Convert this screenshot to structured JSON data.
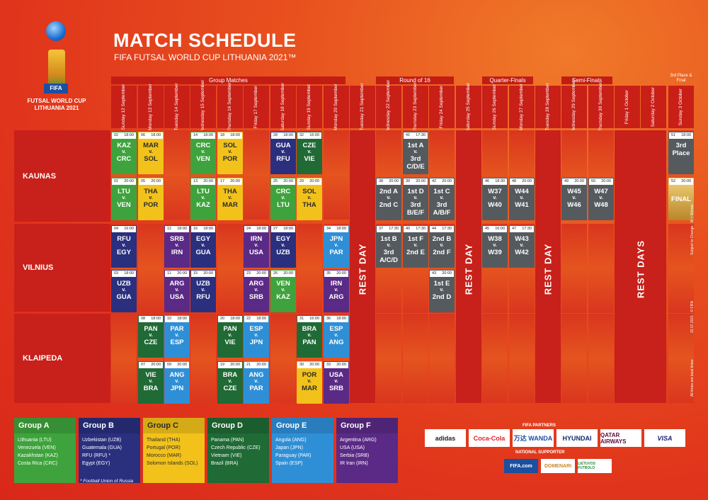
{
  "header": {
    "title": "MATCH SCHEDULE",
    "subtitle": "FIFA FUTSAL WORLD CUP LITHUANIA 2021™",
    "logo_fifa": "FIFA",
    "logo_line1": "FUTSAL WORLD CUP",
    "logo_line2": "LITHUANIA 2021"
  },
  "stages": {
    "group": "Group Matches",
    "r16": "Round of 16",
    "qf": "Quarter-Finals",
    "sf": "Semi-Finals",
    "final": "3rd Place & Final"
  },
  "dates": [
    "Sunday 12 September",
    "Monday 13 September",
    "Tuesday 14 September",
    "Wednesday 15 September",
    "Thursday 16 September",
    "Friday 17 September",
    "Saturday 18 September",
    "Sunday 19 September",
    "Monday 20 September",
    "Tuesday 21 September",
    "Wednesday 22 September",
    "Thursday 23 September",
    "Friday 24 September",
    "Saturday 25 September",
    "Sunday 26 September",
    "Monday 27 September",
    "Tuesday 28 September",
    "Wednesday 29 September",
    "Thursday 30 September",
    "Friday 1 October",
    "Saturday 2 October",
    "Sunday 3 October"
  ],
  "venues": {
    "kaunas": "KAUNAS",
    "vilnius": "VILNIUS",
    "klaipeda": "KLAIPEDA"
  },
  "rest": {
    "day": "REST DAY",
    "days": "REST DAYS"
  },
  "matches": [
    {
      "no": "02",
      "time": "18:00",
      "l1": "KAZ",
      "l2": "v.",
      "l3": "CRC"
    },
    {
      "no": "06",
      "time": "18:00",
      "l1": "MAR",
      "l2": "v.",
      "l3": "SOL"
    },
    {
      "no": "14",
      "time": "18:00",
      "l1": "CRC",
      "l2": "v.",
      "l3": "VEN"
    },
    {
      "no": "18",
      "time": "18:00",
      "l1": "SOL",
      "l2": "v.",
      "l3": "POR"
    },
    {
      "no": "28",
      "time": "18:00",
      "l1": "GUA",
      "l2": "v.",
      "l3": "RFU"
    },
    {
      "no": "32",
      "time": "16:00",
      "l1": "CZE",
      "l2": "v.",
      "l3": "VIE"
    },
    {
      "no": "41",
      "time": "17:30",
      "l1": "1st A",
      "l2": "v.",
      "l3": "3rd C/D/E"
    },
    {
      "no": "51",
      "time": "18:00",
      "l1": "3rd",
      "l2": "",
      "l3": "Place"
    },
    {
      "no": "01",
      "time": "20:00",
      "l1": "LTU",
      "l2": "v.",
      "l3": "VEN"
    },
    {
      "no": "05",
      "time": "20:00",
      "l1": "THA",
      "l2": "v.",
      "l3": "POR"
    },
    {
      "no": "13",
      "time": "20:00",
      "l1": "LTU",
      "l2": "v.",
      "l3": "KAZ"
    },
    {
      "no": "17",
      "time": "20:00",
      "l1": "THA",
      "l2": "v.",
      "l3": "MAR"
    },
    {
      "no": "25",
      "time": "20:00",
      "l1": "CRC",
      "l2": "v.",
      "l3": "LTU"
    },
    {
      "no": "29",
      "time": "20:00",
      "l1": "SOL",
      "l2": "v.",
      "l3": "THA"
    },
    {
      "no": "38",
      "time": "20:00",
      "l1": "2nd A",
      "l2": "v.",
      "l3": "2nd C"
    },
    {
      "no": "39",
      "time": "20:00",
      "l1": "1st D",
      "l2": "v.",
      "l3": "3rd B/E/F"
    },
    {
      "no": "42",
      "time": "20:00",
      "l1": "1st C",
      "l2": "v.",
      "l3": "3rd A/B/F"
    },
    {
      "no": "46",
      "time": "18:30",
      "l1": "W37",
      "l2": "v.",
      "l3": "W40"
    },
    {
      "no": "48",
      "time": "20:00",
      "l1": "W44",
      "l2": "v.",
      "l3": "W41"
    },
    {
      "no": "49",
      "time": "20:00",
      "l1": "W45",
      "l2": "v.",
      "l3": "W46"
    },
    {
      "no": "50",
      "time": "20:00",
      "l1": "W47",
      "l2": "v.",
      "l3": "W48"
    },
    {
      "no": "52",
      "time": "20:00",
      "l1": "FINAL",
      "l2": "",
      "l3": ""
    },
    {
      "no": "04",
      "time": "16:00",
      "l1": "RFU",
      "l2": "v.",
      "l3": "EGY"
    },
    {
      "no": "12",
      "time": "18:00",
      "l1": "SRB",
      "l2": "v.",
      "l3": "IRN"
    },
    {
      "no": "16",
      "time": "18:00",
      "l1": "EGY",
      "l2": "v.",
      "l3": "GUA"
    },
    {
      "no": "24",
      "time": "18:00",
      "l1": "IRN",
      "l2": "v.",
      "l3": "USA"
    },
    {
      "no": "27",
      "time": "18:00",
      "l1": "EGY",
      "l2": "v.",
      "l3": "UZB"
    },
    {
      "no": "34",
      "time": "18:00",
      "l1": "JPN",
      "l2": "v.",
      "l3": "PAR"
    },
    {
      "no": "37",
      "time": "17:30",
      "l1": "1st B",
      "l2": "v.",
      "l3": "3rd A/C/D"
    },
    {
      "no": "40",
      "time": "17:30",
      "l1": "1st F",
      "l2": "v.",
      "l3": "2nd E"
    },
    {
      "no": "44",
      "time": "17:30",
      "l1": "2nd B",
      "l2": "v.",
      "l3": "2nd F"
    },
    {
      "no": "45",
      "time": "16:00",
      "l1": "W38",
      "l2": "v.",
      "l3": "W39"
    },
    {
      "no": "47",
      "time": "17:30",
      "l1": "W43",
      "l2": "v.",
      "l3": "W42"
    },
    {
      "no": "03",
      "time": "18:00",
      "l1": "UZB",
      "l2": "v.",
      "l3": "GUA"
    },
    {
      "no": "11",
      "time": "20:00",
      "l1": "ARG",
      "l2": "v.",
      "l3": "USA"
    },
    {
      "no": "15",
      "time": "20:00",
      "l1": "UZB",
      "l2": "v.",
      "l3": "RFU"
    },
    {
      "no": "23",
      "time": "20:00",
      "l1": "ARG",
      "l2": "v.",
      "l3": "SRB"
    },
    {
      "no": "26",
      "time": "20:00",
      "l1": "VEN",
      "l2": "v.",
      "l3": "KAZ"
    },
    {
      "no": "35",
      "time": "20:00",
      "l1": "IRN",
      "l2": "v.",
      "l3": "ARG"
    },
    {
      "no": "43",
      "time": "20:00",
      "l1": "1st E",
      "l2": "v.",
      "l3": "2nd D"
    },
    {
      "no": "08",
      "time": "18:00",
      "l1": "PAN",
      "l2": "v.",
      "l3": "CZE"
    },
    {
      "no": "10",
      "time": "18:00",
      "l1": "PAR",
      "l2": "v.",
      "l3": "ESP"
    },
    {
      "no": "20",
      "time": "18:00",
      "l1": "PAN",
      "l2": "v.",
      "l3": "VIE"
    },
    {
      "no": "22",
      "time": "18:00",
      "l1": "ESP",
      "l2": "v.",
      "l3": "JPN"
    },
    {
      "no": "31",
      "time": "16:00",
      "l1": "BRA",
      "l2": "v.",
      "l3": "PAN"
    },
    {
      "no": "36",
      "time": "18:00",
      "l1": "ESP",
      "l2": "v.",
      "l3": "ANG"
    },
    {
      "no": "07",
      "time": "20:00",
      "l1": "VIE",
      "l2": "v.",
      "l3": "BRA"
    },
    {
      "no": "09",
      "time": "20:00",
      "l1": "ANG",
      "l2": "v.",
      "l3": "JPN"
    },
    {
      "no": "19",
      "time": "20:00",
      "l1": "BRA",
      "l2": "v.",
      "l3": "CZE"
    },
    {
      "no": "21",
      "time": "20:00",
      "l1": "ANG",
      "l2": "v.",
      "l3": "PAR"
    },
    {
      "no": "30",
      "time": "20:00",
      "l1": "POR",
      "l2": "v.",
      "l3": "MAR"
    },
    {
      "no": "33",
      "time": "20:00",
      "l1": "USA",
      "l2": "v.",
      "l3": "SRB"
    }
  ],
  "groups": [
    {
      "name": "Group A",
      "teams": [
        "Lithuania (LTU)",
        "Venezuela (VEN)",
        "Kazakhstan (KAZ)",
        "Costa Rica (CRC)"
      ]
    },
    {
      "name": "Group B",
      "teams": [
        "Uzbekistan (UZB)",
        "Guatemala (GUA)",
        "RFU (RFU) *",
        "Egypt (EGY)"
      ]
    },
    {
      "name": "Group C",
      "teams": [
        "Thailand (THA)",
        "Portugal (POR)",
        "Morocco (MAR)",
        "Solomon Islands (SOL)"
      ]
    },
    {
      "name": "Group D",
      "teams": [
        "Panama (PAN)",
        "Czech Republic (CZE)",
        "Vietnam (VIE)",
        "Brazil (BRA)"
      ]
    },
    {
      "name": "Group E",
      "teams": [
        "Angola (ANG)",
        "Japan (JPN)",
        "Paraguay (PAR)",
        "Spain (ESP)"
      ]
    },
    {
      "name": "Group F",
      "teams": [
        "Argentina (ARG)",
        "USA (USA)",
        "Serbia (SRB)",
        "IR Iran (IRN)"
      ]
    }
  ],
  "footnote": "* Football Union of Russia",
  "partners": {
    "label": "FIFA PARTNERS",
    "items": [
      "adidas",
      "Coca-Cola",
      "万达 WANDA",
      "HYUNDAI",
      "QATAR AIRWAYS",
      "VISA"
    ],
    "national_label": "NATIONAL SUPPORTER",
    "national": [
      "FIFA.com",
      "DOMENARI",
      "LIETUVOS FUTBOLO"
    ]
  },
  "side_notes": [
    "All times are local times",
    "22.07.2021 · © FIFA",
    "Subject to Change · W = Winner"
  ]
}
